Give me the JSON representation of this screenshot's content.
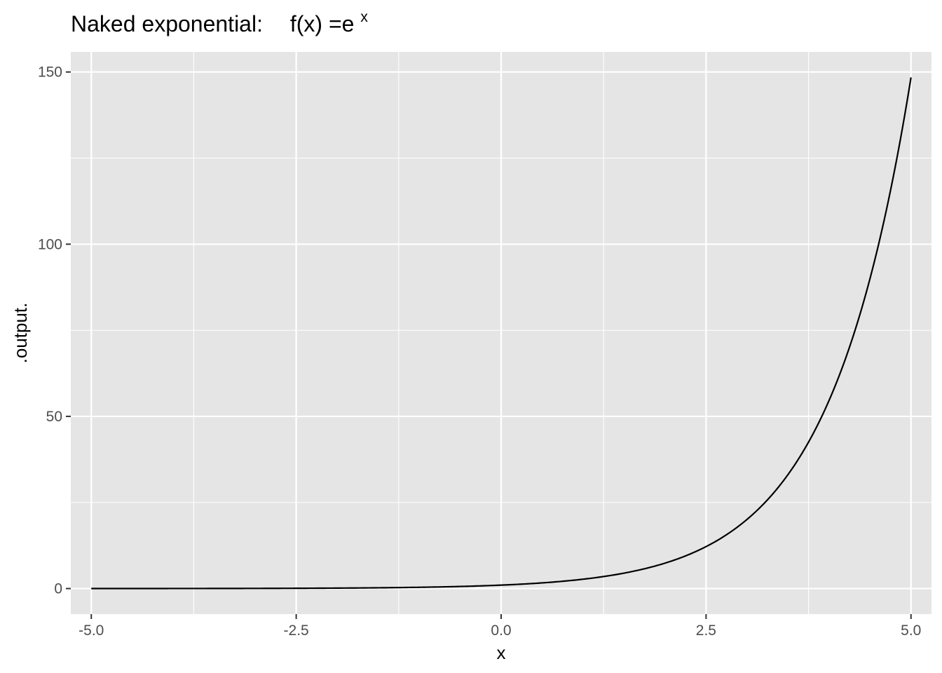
{
  "chart_data": {
    "type": "line",
    "title_main": "Naked exponential:",
    "title_formula": "f(x) =e",
    "title_superscript": "x",
    "xlabel": "x",
    "ylabel": ".output.",
    "xlim": [
      -5.25,
      5.25
    ],
    "ylim": [
      -7.42,
      155.84
    ],
    "x_ticks": [
      -5.0,
      -2.5,
      0.0,
      2.5,
      5.0
    ],
    "x_tick_labels": [
      "-5.0",
      "-2.5",
      "0.0",
      "2.5",
      "5.0"
    ],
    "x_minor_ticks": [
      -3.75,
      -1.25,
      1.25,
      3.75
    ],
    "y_ticks": [
      0,
      50,
      100,
      150
    ],
    "y_tick_labels": [
      "0",
      "50",
      "100",
      "150"
    ],
    "y_minor_ticks": [
      25,
      75,
      125
    ],
    "grid": true,
    "series": [
      {
        "function": "exp",
        "x_range": [
          -5,
          5
        ],
        "color": "#000000"
      }
    ],
    "colors": {
      "panel_background": "#e5e5e5",
      "grid_line": "#ffffff",
      "tick_mark": "#333333"
    }
  }
}
